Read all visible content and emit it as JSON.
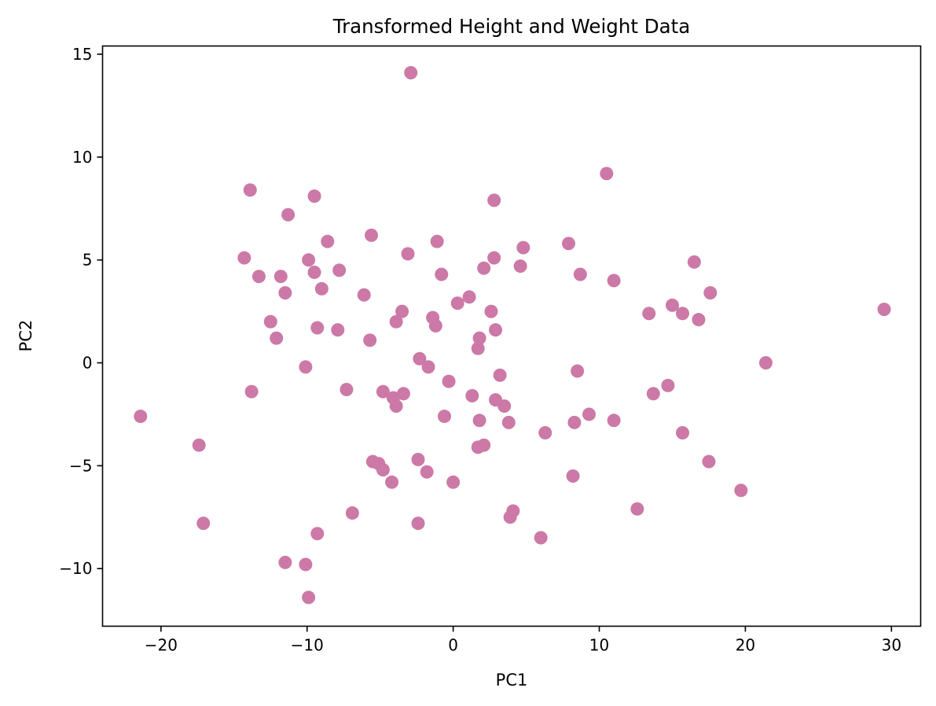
{
  "chart_data": {
    "type": "scatter",
    "title": "Transformed Height and Weight Data",
    "xlabel": "PC1",
    "ylabel": "PC2",
    "xlim": [
      -24,
      32
    ],
    "ylim": [
      -12.8,
      15.4
    ],
    "xticks": [
      -20,
      -10,
      0,
      10,
      20,
      30
    ],
    "yticks": [
      -10,
      -5,
      0,
      5,
      10,
      15
    ],
    "xtick_labels": [
      "−20",
      "−10",
      "0",
      "10",
      "20",
      "30"
    ],
    "ytick_labels": [
      "−10",
      "−5",
      "0",
      "5",
      "10",
      "15"
    ],
    "grid": false,
    "series": [
      {
        "color": "#cc79a7",
        "points": [
          [
            -2.9,
            14.1
          ],
          [
            10.5,
            9.2
          ],
          [
            -13.9,
            8.4
          ],
          [
            -9.5,
            8.1
          ],
          [
            2.8,
            7.9
          ],
          [
            -11.3,
            7.2
          ],
          [
            -5.6,
            6.2
          ],
          [
            -8.6,
            5.9
          ],
          [
            -1.1,
            5.9
          ],
          [
            7.9,
            5.8
          ],
          [
            4.8,
            5.6
          ],
          [
            -3.1,
            5.3
          ],
          [
            -14.3,
            5.1
          ],
          [
            2.8,
            5.1
          ],
          [
            -9.9,
            5.0
          ],
          [
            16.5,
            4.9
          ],
          [
            4.6,
            4.7
          ],
          [
            2.1,
            4.6
          ],
          [
            -7.8,
            4.5
          ],
          [
            -9.5,
            4.4
          ],
          [
            -0.8,
            4.3
          ],
          [
            8.7,
            4.3
          ],
          [
            -13.3,
            4.2
          ],
          [
            -11.8,
            4.2
          ],
          [
            11.0,
            4.0
          ],
          [
            -9.0,
            3.6
          ],
          [
            -11.5,
            3.4
          ],
          [
            -6.1,
            3.3
          ],
          [
            17.6,
            3.4
          ],
          [
            1.1,
            3.2
          ],
          [
            0.3,
            2.9
          ],
          [
            15.0,
            2.8
          ],
          [
            29.5,
            2.6
          ],
          [
            -3.5,
            2.5
          ],
          [
            2.6,
            2.5
          ],
          [
            13.4,
            2.4
          ],
          [
            15.7,
            2.4
          ],
          [
            -1.4,
            2.2
          ],
          [
            16.8,
            2.1
          ],
          [
            -12.5,
            2.0
          ],
          [
            -3.9,
            2.0
          ],
          [
            -1.2,
            1.8
          ],
          [
            -9.3,
            1.7
          ],
          [
            -7.9,
            1.6
          ],
          [
            2.9,
            1.6
          ],
          [
            1.8,
            1.2
          ],
          [
            -12.1,
            1.2
          ],
          [
            -5.7,
            1.1
          ],
          [
            1.7,
            0.7
          ],
          [
            -2.3,
            0.2
          ],
          [
            -1.7,
            -0.2
          ],
          [
            21.4,
            0.0
          ],
          [
            -10.1,
            -0.2
          ],
          [
            8.5,
            -0.4
          ],
          [
            3.2,
            -0.6
          ],
          [
            -0.3,
            -0.9
          ],
          [
            14.7,
            -1.1
          ],
          [
            -13.8,
            -1.4
          ],
          [
            -7.3,
            -1.3
          ],
          [
            -4.8,
            -1.4
          ],
          [
            -3.4,
            -1.5
          ],
          [
            13.7,
            -1.5
          ],
          [
            1.3,
            -1.6
          ],
          [
            -4.1,
            -1.7
          ],
          [
            2.9,
            -1.8
          ],
          [
            3.5,
            -2.1
          ],
          [
            -3.9,
            -2.1
          ],
          [
            9.3,
            -2.5
          ],
          [
            -21.4,
            -2.6
          ],
          [
            -0.6,
            -2.6
          ],
          [
            1.8,
            -2.8
          ],
          [
            11.0,
            -2.8
          ],
          [
            3.8,
            -2.9
          ],
          [
            8.3,
            -2.9
          ],
          [
            6.3,
            -3.4
          ],
          [
            15.7,
            -3.4
          ],
          [
            -17.4,
            -4.0
          ],
          [
            2.1,
            -4.0
          ],
          [
            1.7,
            -4.1
          ],
          [
            -2.4,
            -4.7
          ],
          [
            -5.5,
            -4.8
          ],
          [
            -5.1,
            -4.9
          ],
          [
            17.5,
            -4.8
          ],
          [
            -4.8,
            -5.2
          ],
          [
            -1.8,
            -5.3
          ],
          [
            8.2,
            -5.5
          ],
          [
            -4.2,
            -5.8
          ],
          [
            0.0,
            -5.8
          ],
          [
            19.7,
            -6.2
          ],
          [
            12.6,
            -7.1
          ],
          [
            4.1,
            -7.2
          ],
          [
            -6.9,
            -7.3
          ],
          [
            3.9,
            -7.5
          ],
          [
            -17.1,
            -7.8
          ],
          [
            -2.4,
            -7.8
          ],
          [
            6.0,
            -8.5
          ],
          [
            -9.3,
            -8.3
          ],
          [
            -11.5,
            -9.7
          ],
          [
            -10.1,
            -9.8
          ],
          [
            -9.9,
            -11.4
          ]
        ]
      }
    ]
  }
}
